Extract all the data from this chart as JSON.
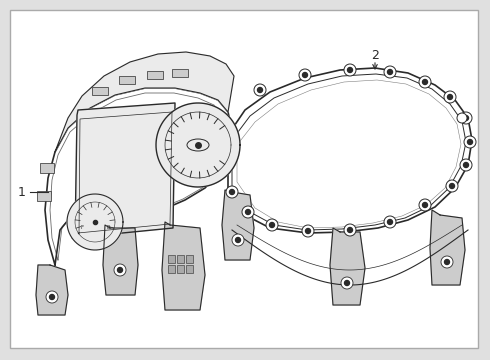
{
  "background_color": "#e0e0e0",
  "border_color": "#aaaaaa",
  "line_color": "#2a2a2a",
  "fill_white": "#ffffff",
  "fill_light": "#ebebeb",
  "fill_mid": "#cccccc",
  "label_1": "1",
  "label_2": "2",
  "figsize": [
    4.9,
    3.6
  ],
  "dpi": 100
}
